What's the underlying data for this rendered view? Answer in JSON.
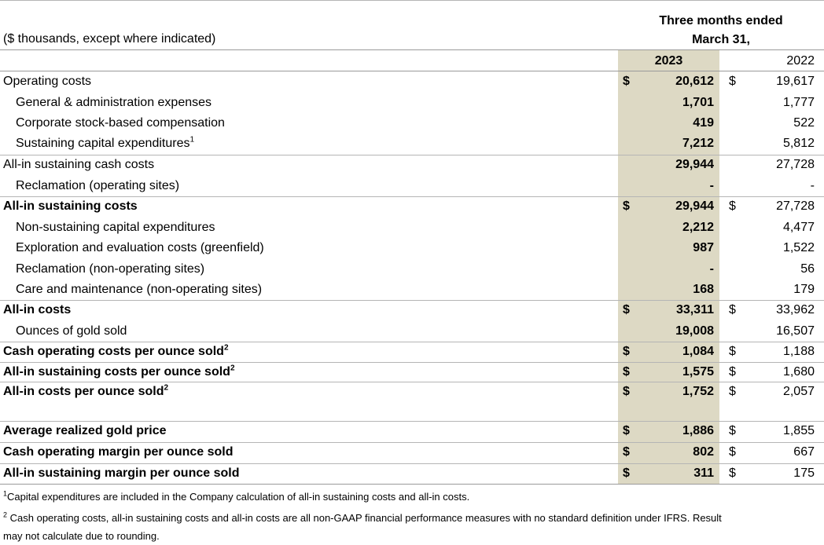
{
  "header": {
    "units_label": "($ thousands, except where indicated)",
    "period_line1": "Three months ended",
    "period_line2": "March 31,",
    "col_2023": "2023",
    "col_2022": "2022"
  },
  "rows": [
    {
      "label": "Operating costs",
      "sup": "",
      "indent": false,
      "bold": false,
      "cur23": "$",
      "v23": "20,612",
      "cur22": "$",
      "v22": "19,617"
    },
    {
      "label": "General & administration expenses",
      "sup": "",
      "indent": true,
      "bold": false,
      "cur23": "",
      "v23": "1,701",
      "cur22": "",
      "v22": "1,777"
    },
    {
      "label": "Corporate stock-based compensation",
      "sup": "",
      "indent": true,
      "bold": false,
      "cur23": "",
      "v23": "419",
      "cur22": "",
      "v22": "522"
    },
    {
      "label": "Sustaining capital expenditures",
      "sup": "1",
      "indent": true,
      "bold": false,
      "cur23": "",
      "v23": "7,212",
      "cur22": "",
      "v22": "5,812"
    },
    {
      "label": "All-in sustaining cash costs",
      "sup": "",
      "indent": false,
      "bold": false,
      "cur23": "",
      "v23": "29,944",
      "cur22": "",
      "v22": "27,728"
    },
    {
      "label": "Reclamation (operating sites)",
      "sup": "",
      "indent": true,
      "bold": false,
      "cur23": "",
      "v23": "-",
      "cur22": "",
      "v22": "-"
    },
    {
      "label": "All-in sustaining costs",
      "sup": "",
      "indent": false,
      "bold": true,
      "cur23": "$",
      "v23": "29,944",
      "cur22": "$",
      "v22": "27,728"
    },
    {
      "label": "Non-sustaining capital expenditures",
      "sup": "",
      "indent": true,
      "bold": false,
      "cur23": "",
      "v23": "2,212",
      "cur22": "",
      "v22": "4,477"
    },
    {
      "label": "Exploration and evaluation costs (greenfield)",
      "sup": "",
      "indent": true,
      "bold": false,
      "cur23": "",
      "v23": "987",
      "cur22": "",
      "v22": "1,522"
    },
    {
      "label": "Reclamation (non-operating sites)",
      "sup": "",
      "indent": true,
      "bold": false,
      "cur23": "",
      "v23": "-",
      "cur22": "",
      "v22": "56"
    },
    {
      "label": "Care and maintenance (non-operating sites)",
      "sup": "",
      "indent": true,
      "bold": false,
      "cur23": "",
      "v23": "168",
      "cur22": "",
      "v22": "179"
    },
    {
      "label": "All-in costs",
      "sup": "",
      "indent": false,
      "bold": true,
      "cur23": "$",
      "v23": "33,311",
      "cur22": "$",
      "v22": "33,962"
    },
    {
      "label": "Ounces of gold sold",
      "sup": "",
      "indent": true,
      "bold": false,
      "cur23": "",
      "v23": "19,008",
      "cur22": "",
      "v22": "16,507"
    },
    {
      "label": "Cash operating costs per ounce sold",
      "sup": "2",
      "indent": false,
      "bold": true,
      "cur23": "$",
      "v23": "1,084",
      "cur22": "$",
      "v22": "1,188"
    },
    {
      "label": "All-in sustaining costs per ounce sold",
      "sup": "2",
      "indent": false,
      "bold": true,
      "cur23": "$",
      "v23": "1,575",
      "cur22": "$",
      "v22": "1,680"
    },
    {
      "label": "All-in costs per ounce sold",
      "sup": "2",
      "indent": false,
      "bold": true,
      "cur23": "$",
      "v23": "1,752",
      "cur22": "$",
      "v22": "2,057"
    },
    {
      "label": "Average realized gold price",
      "sup": "",
      "indent": false,
      "bold": true,
      "cur23": "$",
      "v23": "1,886",
      "cur22": "$",
      "v22": "1,855"
    },
    {
      "label": "Cash operating margin per ounce sold",
      "sup": "",
      "indent": false,
      "bold": true,
      "cur23": "$",
      "v23": "802",
      "cur22": "$",
      "v22": "667"
    },
    {
      "label": "All-in sustaining margin per ounce sold",
      "sup": "",
      "indent": false,
      "bold": true,
      "cur23": "$",
      "v23": "311",
      "cur22": "$",
      "v22": "175"
    }
  ],
  "footnotes": {
    "fn1_marker": "1",
    "fn1_text": "Capital expenditures are included in the Company calculation of all-in sustaining costs and all-in costs.",
    "fn2_marker": "2",
    "fn2_line1": " Cash operating costs, all-in sustaining costs and all-in costs are all non-GAAP financial performance measures with no standard definition under IFRS.  Result",
    "fn2_line2": "may not calculate due to rounding."
  }
}
